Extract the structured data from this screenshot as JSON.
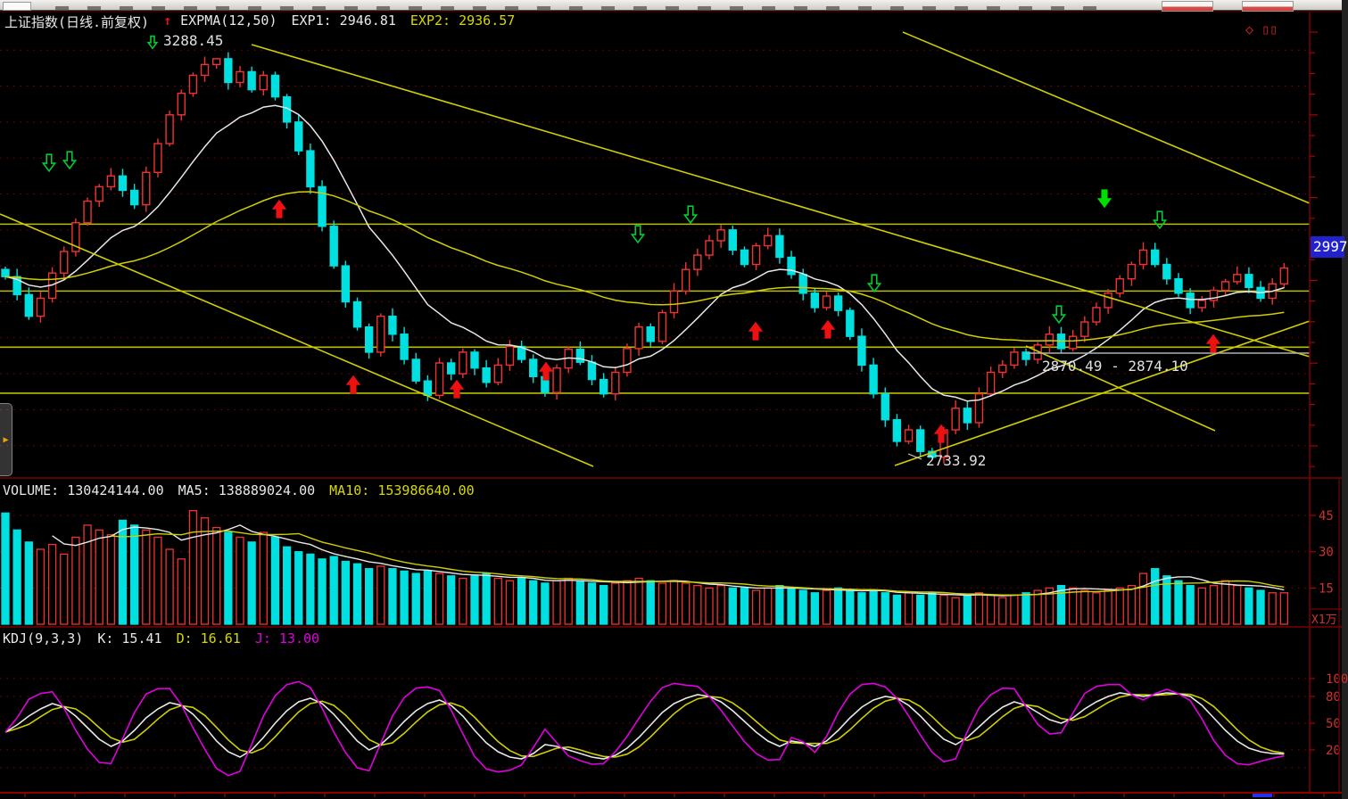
{
  "icons": {
    "up_arrow": "↑",
    "diamond": "◇",
    "panes": "▯▯",
    "expander": "▶"
  },
  "main_chart": {
    "title": "上证指数(日线.前复权)",
    "indicator": "EXPMA(12,50)",
    "exp1": "EXP1: 2946.81",
    "exp2": "EXP2: 2936.57",
    "high_label": "3288.45",
    "low_label": "2733.92",
    "range_label": "2870.49 - 2874.10",
    "price_tag": "2997"
  },
  "volume_panel": {
    "label": "VOLUME: 130424144.00",
    "ma5": "MA5: 138889024.00",
    "ma10": "MA10: 153986640.00",
    "unit": "X1万"
  },
  "kdj_panel": {
    "label": "KDJ(9,3,3)",
    "k": "K: 15.41",
    "d": "D: 16.61",
    "j": "J: 13.00"
  },
  "colors": {
    "candle_up": "#ee3333",
    "candle_down": "#00e0e0",
    "ema_fast": "#e8e8e8",
    "ema_slow": "#cfcf00",
    "trendline": "#cfcf00",
    "level_line": "#bdbd00",
    "grid_dot": "#8b0000",
    "axis_red": "#aa0000",
    "axis_label": "#cf3030",
    "arrow_up": "#ee1111",
    "arrow_down": "#00cc33",
    "arrow_down_filled": "#00dd00",
    "kdj_k": "#e8e8e8",
    "kdj_d": "#cfcf00",
    "kdj_j": "#e000e0",
    "tag_bg": "#2222cc",
    "separator": "#7a0000",
    "gray_line": "#b0b0b0"
  },
  "chart_data": [
    {
      "type": "candlestick",
      "title": "上证指数(日线.前复权)",
      "indicator": "EXPMA(12,50)",
      "exp1": 2946.81,
      "exp2": 2936.57,
      "y_range": [
        2710,
        3330
      ],
      "grid_step": 50,
      "first_open": 2995,
      "closes": [
        2985,
        2960,
        2930,
        2955,
        2990,
        3020,
        3060,
        3090,
        3110,
        3125,
        3105,
        3085,
        3130,
        3170,
        3210,
        3240,
        3265,
        3280,
        3288,
        3255,
        3270,
        3245,
        3265,
        3235,
        3200,
        3160,
        3110,
        3055,
        3000,
        2950,
        2915,
        2880,
        2930,
        2905,
        2870,
        2840,
        2820,
        2865,
        2850,
        2880,
        2858,
        2838,
        2862,
        2888,
        2870,
        2846,
        2824,
        2858,
        2884,
        2866,
        2842,
        2822,
        2852,
        2885,
        2915,
        2895,
        2935,
        2965,
        2995,
        3015,
        3035,
        3050,
        3022,
        3002,
        3028,
        3042,
        3012,
        2988,
        2962,
        2942,
        2958,
        2938,
        2902,
        2862,
        2822,
        2786,
        2756,
        2772,
        2742,
        2734,
        2772,
        2802,
        2782,
        2822,
        2852,
        2862,
        2880,
        2870,
        2890,
        2905,
        2885,
        2902,
        2922,
        2942,
        2962,
        2982,
        3002,
        3022,
        3002,
        2982,
        2962,
        2942,
        2952,
        2966,
        2978,
        2988,
        2970,
        2955,
        2975,
        2997
      ],
      "marked_high": {
        "index": 18,
        "value": 3288.45
      },
      "marked_low": {
        "index": 79,
        "value": 2733.92
      },
      "last_price": 2997,
      "levels": [
        3058,
        2965,
        2887,
        2823
      ],
      "trendlines": [
        [
          0,
          240,
          665,
          523
        ],
        [
          282,
          50,
          1468,
          400
        ],
        [
          1012,
          36,
          1468,
          228
        ],
        [
          1003,
          522,
          1468,
          360
        ],
        [
          1150,
          388,
          1362,
          483
        ]
      ],
      "gray_line": [
        1150,
        396,
        1468,
        396
      ],
      "signals_up": [
        [
          313,
          235
        ],
        [
          396,
          432
        ],
        [
          512,
          437
        ],
        [
          612,
          417
        ],
        [
          847,
          372
        ],
        [
          928,
          370
        ],
        [
          1055,
          487
        ],
        [
          1360,
          386
        ]
      ],
      "signals_down_hollow": [
        [
          55,
          182
        ],
        [
          78,
          179
        ],
        [
          715,
          262
        ],
        [
          774,
          240
        ],
        [
          980,
          317
        ],
        [
          1187,
          352
        ],
        [
          1300,
          246
        ]
      ],
      "signals_down_filled": [
        [
          1238,
          222
        ]
      ]
    },
    {
      "type": "bar",
      "name": "VOLUME",
      "last_volume": 130424144.0,
      "ma5_last": 138889024.0,
      "ma10_last": 153986640.0,
      "axis_ticks": [
        45,
        30,
        15
      ],
      "unit": "X1万",
      "values": [
        46,
        39,
        34,
        31,
        33,
        29,
        36,
        41,
        39,
        37,
        43,
        41,
        39,
        36,
        31,
        27,
        47,
        44,
        40,
        38,
        36,
        34,
        38,
        36,
        32,
        30,
        29,
        27,
        28,
        26,
        25,
        23,
        24,
        23,
        22,
        21,
        22,
        21,
        20,
        19,
        20,
        21,
        19,
        18,
        19,
        18,
        17,
        18,
        19,
        18,
        17,
        16,
        17,
        18,
        19,
        18,
        17,
        18,
        17,
        16,
        15,
        16,
        15,
        15,
        14,
        15,
        16,
        15,
        14,
        13,
        14,
        15,
        14,
        13,
        14,
        13,
        12,
        13,
        12,
        13,
        12,
        11,
        12,
        13,
        12,
        11,
        12,
        13,
        14,
        15,
        16,
        15,
        14,
        13,
        14,
        15,
        16,
        21,
        23,
        20,
        18,
        16,
        15,
        16,
        18,
        16,
        15,
        14,
        13,
        13
      ]
    },
    {
      "type": "line",
      "name": "KDJ(9,3,3)",
      "k_last": 15.41,
      "d_last": 16.61,
      "j_last": 13.0,
      "axis_ticks": [
        100,
        80,
        50,
        20
      ],
      "k": [
        40,
        48,
        58,
        66,
        72,
        68,
        58,
        45,
        32,
        24,
        30,
        42,
        56,
        66,
        73,
        70,
        60,
        46,
        30,
        18,
        12,
        20,
        34,
        50,
        64,
        74,
        78,
        72,
        60,
        45,
        30,
        20,
        26,
        38,
        52,
        64,
        72,
        76,
        70,
        58,
        42,
        28,
        18,
        12,
        10,
        16,
        26,
        24,
        20,
        16,
        12,
        10,
        14,
        22,
        34,
        48,
        62,
        72,
        78,
        82,
        80,
        74,
        64,
        52,
        40,
        30,
        24,
        30,
        28,
        24,
        30,
        42,
        56,
        68,
        76,
        80,
        78,
        70,
        58,
        44,
        32,
        26,
        34,
        46,
        58,
        68,
        74,
        70,
        62,
        54,
        50,
        56,
        66,
        74,
        80,
        84,
        82,
        80,
        82,
        84,
        83,
        80,
        70,
        56,
        42,
        30,
        22,
        18,
        16,
        15.41
      ]
    }
  ]
}
